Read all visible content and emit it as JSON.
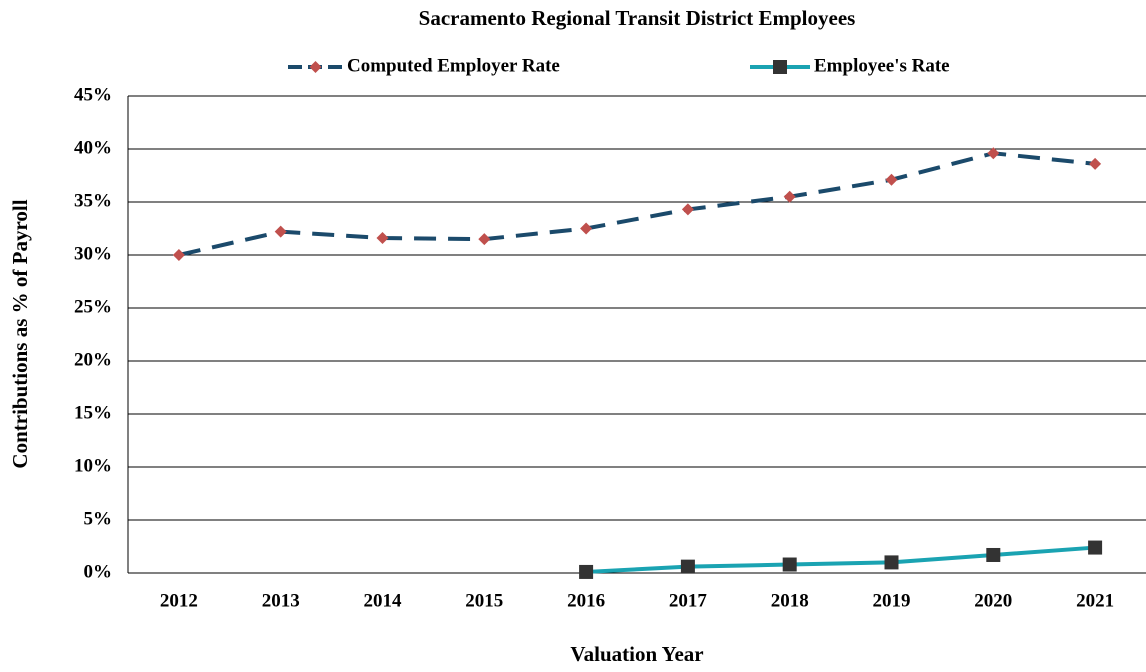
{
  "chart_data": {
    "type": "line",
    "title": "Sacramento  Regional Transit District Employees",
    "x_label": "Valuation Year",
    "y_label": "Contributions as % of Payroll",
    "categories": [
      "2012",
      "2013",
      "2014",
      "2015",
      "2016",
      "2017",
      "2018",
      "2019",
      "2020",
      "2021"
    ],
    "series": [
      {
        "name": "Computed Employer Rate",
        "color": "#1b4a6b",
        "marker_color": "#c0504d",
        "marker": "diamond",
        "dashed": true,
        "values": [
          30.0,
          32.2,
          31.6,
          31.5,
          32.5,
          34.3,
          35.5,
          37.1,
          39.6,
          38.6
        ]
      },
      {
        "name": "Employee's Rate",
        "color": "#1aa3b2",
        "marker_color": "#333333",
        "marker": "square",
        "dashed": false,
        "values": [
          null,
          null,
          null,
          null,
          0.1,
          0.6,
          0.8,
          1.0,
          1.7,
          2.4
        ]
      }
    ],
    "ylim": [
      0,
      45
    ],
    "yticks": [
      {
        "value": 0,
        "label": "0%"
      },
      {
        "value": 5,
        "label": "5%"
      },
      {
        "value": 10,
        "label": "10%"
      },
      {
        "value": 15,
        "label": "15%"
      },
      {
        "value": 20,
        "label": "20%"
      },
      {
        "value": 25,
        "label": "25%"
      },
      {
        "value": 30,
        "label": "30%"
      },
      {
        "value": 35,
        "label": "35%"
      },
      {
        "value": 40,
        "label": "40%"
      },
      {
        "value": 45,
        "label": "45%"
      }
    ],
    "grid": true,
    "legend": "top"
  }
}
